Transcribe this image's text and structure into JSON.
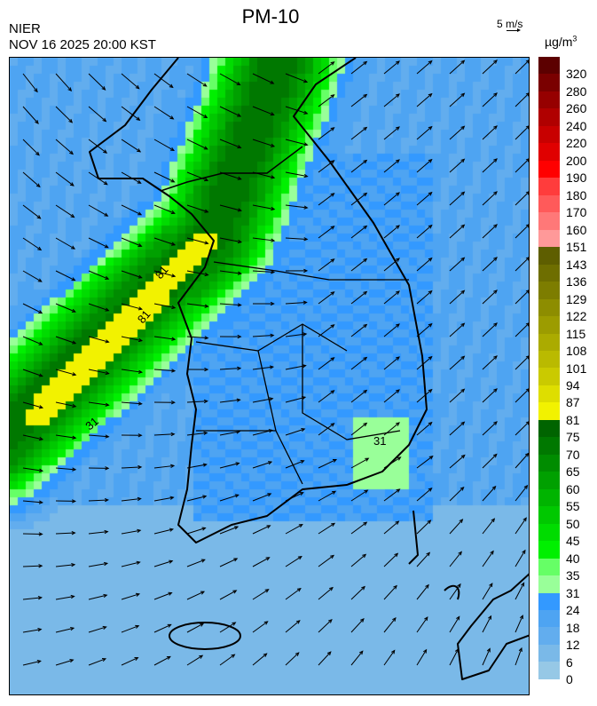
{
  "header": {
    "title": "PM-10",
    "organization": "NIER",
    "timestamp": "NOV 16 2025 20:00 KST"
  },
  "wind_scale": {
    "label": "5 m/s"
  },
  "legend": {
    "unit": "µg/m3",
    "labels": [
      "320",
      "280",
      "260",
      "240",
      "220",
      "200",
      "190",
      "180",
      "170",
      "160",
      "151",
      "143",
      "136",
      "129",
      "122",
      "115",
      "108",
      "101",
      "94",
      "87",
      "81",
      "75",
      "70",
      "65",
      "60",
      "55",
      "50",
      "45",
      "40",
      "35",
      "31",
      "24",
      "18",
      "12",
      "6",
      "0"
    ],
    "colors": [
      "#5c0000",
      "#7a0000",
      "#960000",
      "#b00000",
      "#c80000",
      "#e00000",
      "#ff0000",
      "#ff3c3c",
      "#ff5a5a",
      "#ff7878",
      "#ff9999",
      "#5e5e00",
      "#6e6e00",
      "#7d7d00",
      "#8d8d00",
      "#9c9c00",
      "#ababab00",
      "#baba00",
      "#caca00",
      "#dede00",
      "#f2f200",
      "#006400",
      "#007800",
      "#008c00",
      "#00a000",
      "#00b400",
      "#00c800",
      "#00dc00",
      "#00f000",
      "#66ff66",
      "#99ff99",
      "#3399ff",
      "#4ea4f2",
      "#62adee",
      "#7ab9e8",
      "#96c8e6"
    ]
  },
  "contour_labels": [
    "81",
    "81",
    "31",
    "31"
  ]
}
